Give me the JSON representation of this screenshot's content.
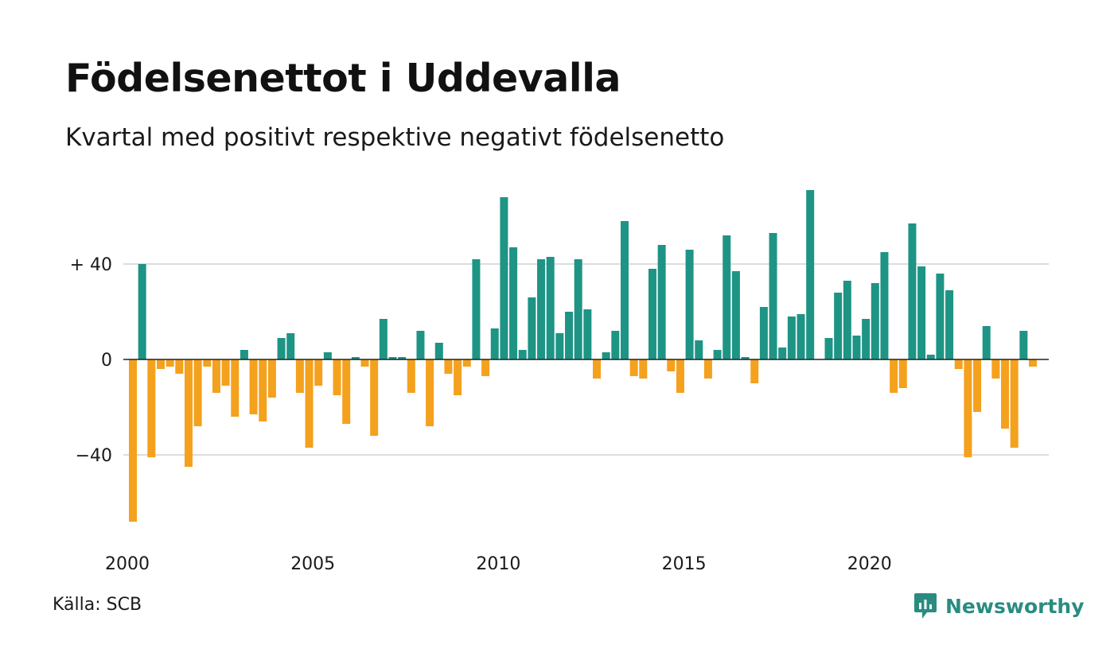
{
  "title": "Födelsenettot i Uddevalla",
  "subtitle": "Kvartal med positivt respektive negativt födelsenetto",
  "source": "Källa: SCB",
  "brand": "Newsworthy",
  "colors": {
    "positive": "#1e9485",
    "negative": "#f4a11e",
    "grid": "#dddddd",
    "axis": "#222222"
  },
  "chart_data": {
    "type": "bar",
    "start_year": 2000,
    "quarters_per_year": 4,
    "values": [
      -68,
      40,
      -41,
      -4,
      -3,
      -6,
      -45,
      -28,
      -3,
      -14,
      -11,
      -24,
      4,
      -23,
      -26,
      -16,
      9,
      11,
      -14,
      -37,
      -11,
      3,
      -15,
      -27,
      1,
      -3,
      -32,
      17,
      1,
      1,
      -14,
      12,
      -28,
      7,
      -6,
      -15,
      -3,
      42,
      -7,
      13,
      68,
      47,
      4,
      26,
      42,
      43,
      11,
      20,
      42,
      21,
      -8,
      3,
      12,
      58,
      -7,
      -8,
      38,
      48,
      -5,
      -14,
      46,
      8,
      -8,
      4,
      52,
      37,
      1,
      -10,
      22,
      53,
      5,
      18,
      19,
      71,
      0,
      9,
      28,
      33,
      10,
      17,
      32,
      45,
      -14,
      -12,
      57,
      39,
      2,
      36,
      29,
      -4,
      -41,
      -22,
      14,
      -8,
      -29,
      -37,
      12,
      -3
    ],
    "y_ticks": [
      40,
      0,
      -40
    ],
    "y_tick_labels": [
      "+ 40",
      "0",
      "−40"
    ],
    "x_ticks": [
      2000,
      2005,
      2010,
      2015,
      2020
    ],
    "x_tick_labels": [
      "2000",
      "2005",
      "2010",
      "2015",
      "2020"
    ],
    "ylim": [
      -70,
      72
    ],
    "grid": true
  }
}
